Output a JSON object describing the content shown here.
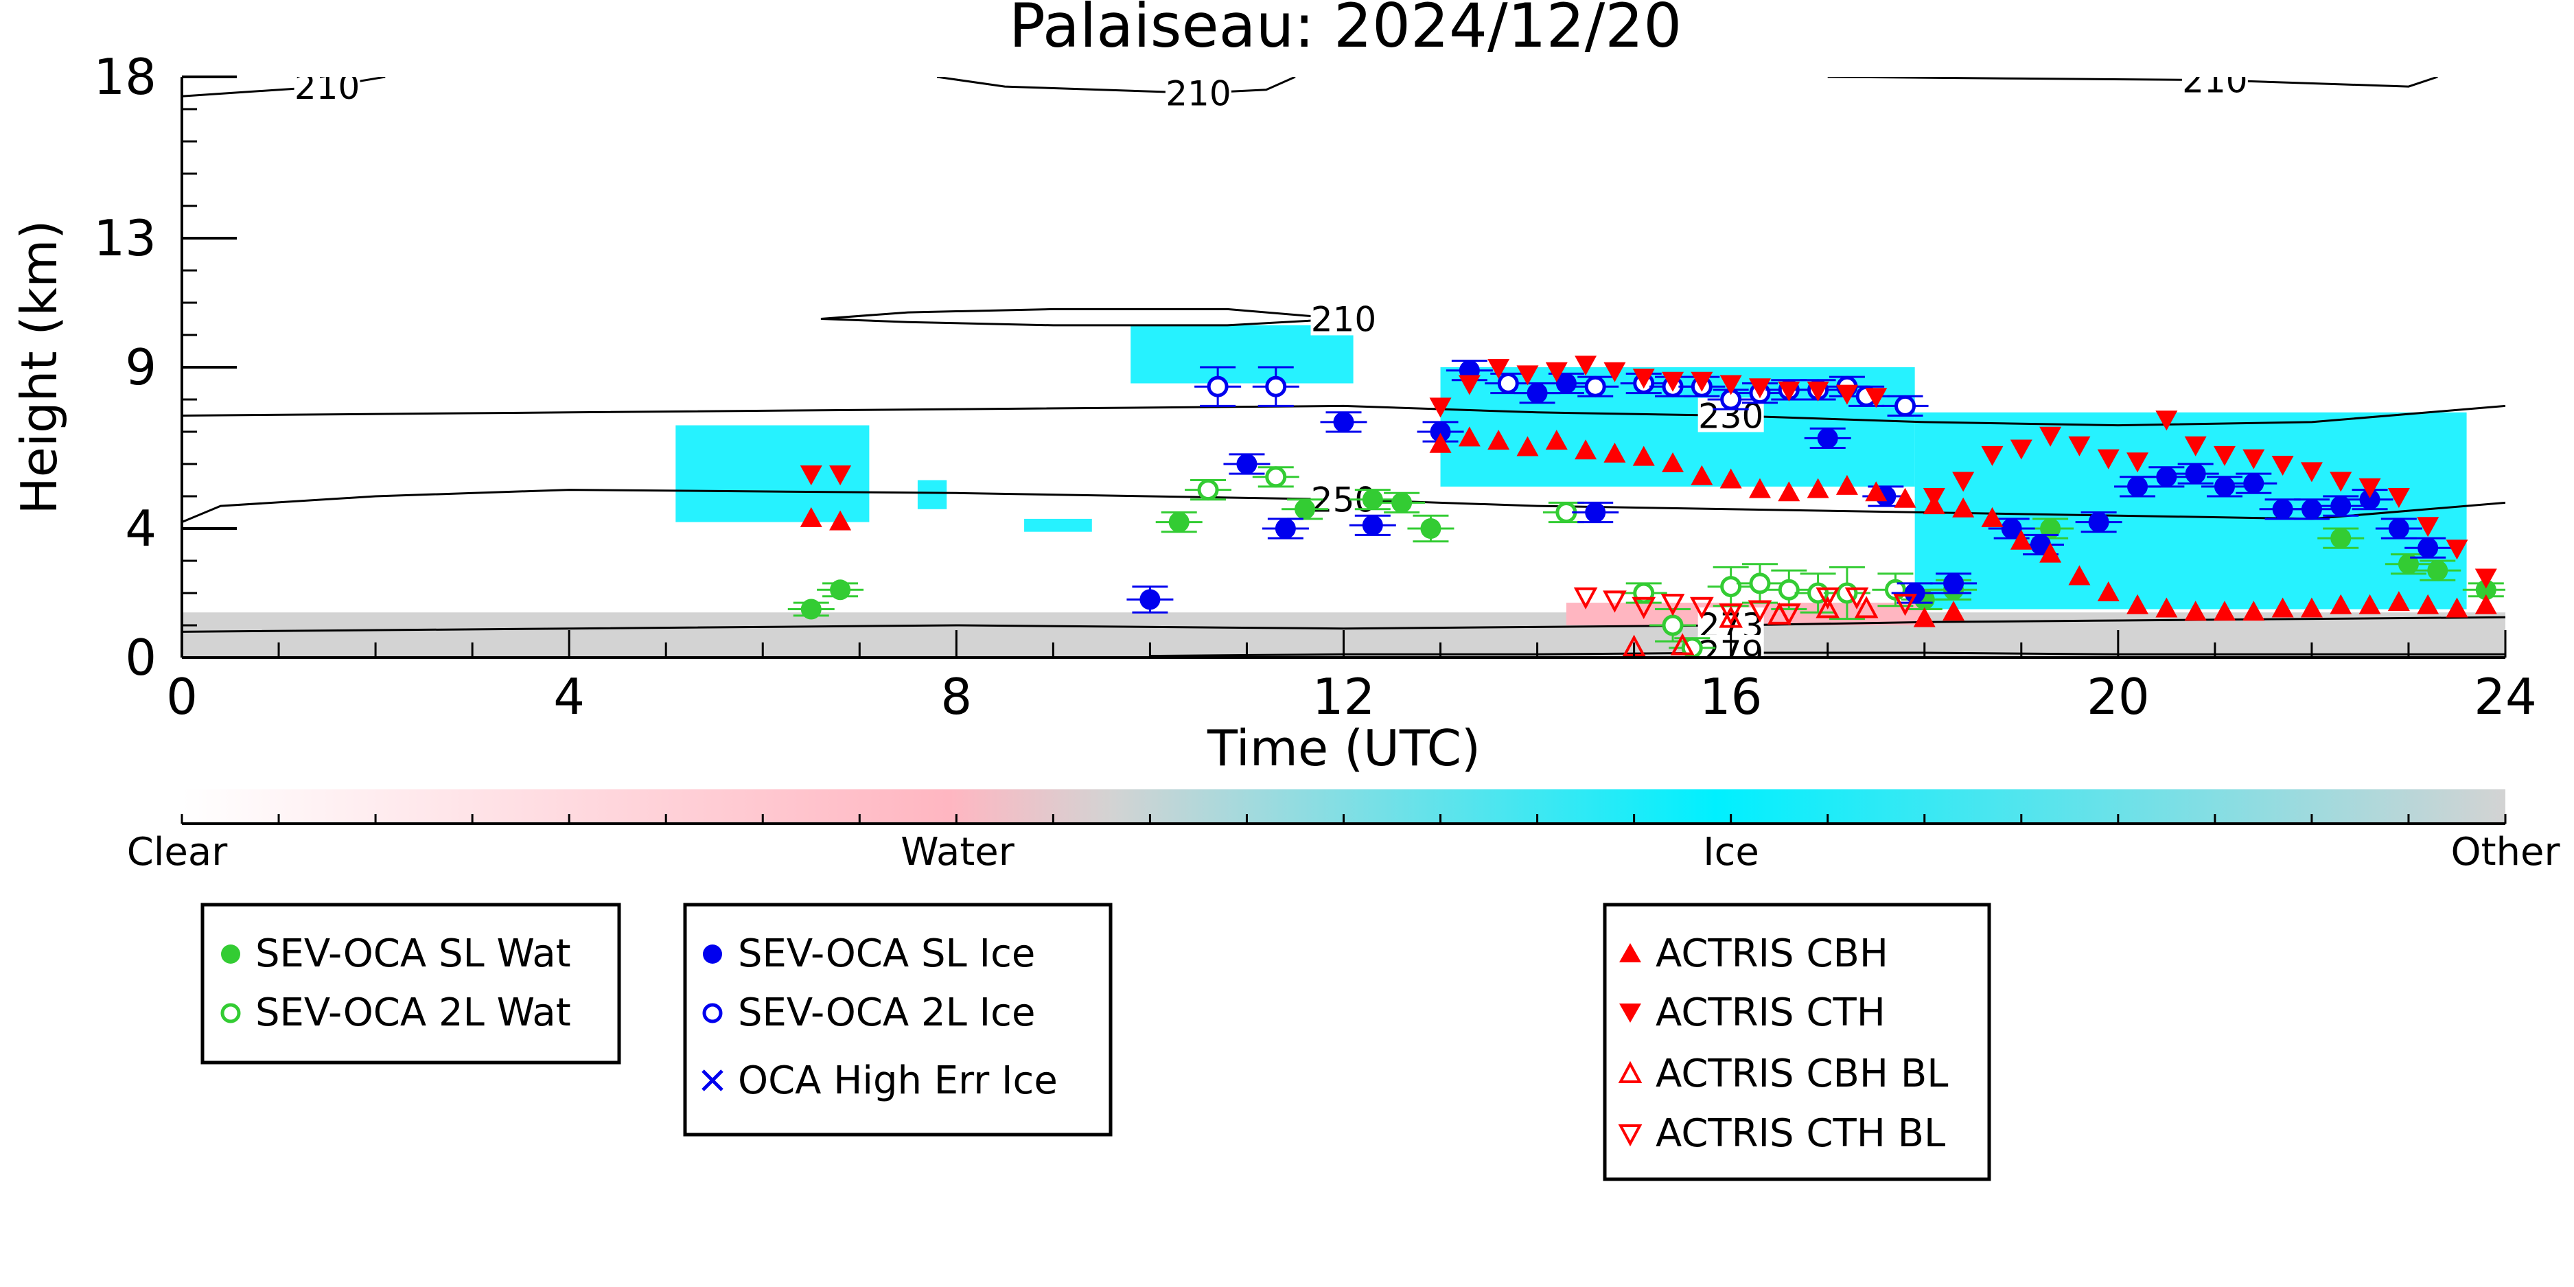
{
  "chart_data": {
    "type": "scatter",
    "title": "Palaiseau: 2024/12/20",
    "xlabel": "Time (UTC)",
    "ylabel": "Height (km)",
    "xlim": [
      0,
      24
    ],
    "ylim": [
      0,
      18
    ],
    "x_ticks": [
      "0",
      "4",
      "8",
      "12",
      "16",
      "20",
      "24"
    ],
    "y_ticks": [
      "0",
      "4",
      "9",
      "13",
      "18"
    ],
    "grid": false,
    "colorbar": {
      "labels": [
        "Clear",
        "Water",
        "Ice",
        "Other"
      ],
      "colors": [
        "#ffffff",
        "#ffb6c1",
        "#00f0ff",
        "#d3d3d3"
      ]
    },
    "contours": [
      {
        "label": "210",
        "points": [
          [
            0,
            17.4
          ],
          [
            0.5,
            17.5
          ],
          [
            1.5,
            17.7
          ],
          [
            2.1,
            18
          ]
        ]
      },
      {
        "label": "210",
        "points": [
          [
            7.8,
            18
          ],
          [
            8.5,
            17.7
          ],
          [
            10.5,
            17.5
          ],
          [
            11.2,
            17.6
          ],
          [
            11.5,
            18
          ]
        ]
      },
      {
        "label": "210",
        "points": [
          [
            17,
            18
          ],
          [
            19,
            17.95
          ],
          [
            21,
            17.9
          ],
          [
            23,
            17.7
          ],
          [
            23.3,
            18
          ]
        ]
      },
      {
        "label": "210",
        "points": [
          [
            6.6,
            10.5
          ],
          [
            7.5,
            10.7
          ],
          [
            9,
            10.8
          ],
          [
            10.8,
            10.8
          ],
          [
            12,
            10.5
          ],
          [
            10.8,
            10.3
          ],
          [
            9,
            10.3
          ],
          [
            7.5,
            10.4
          ],
          [
            6.6,
            10.5
          ]
        ]
      },
      {
        "label": "230",
        "points": [
          [
            0,
            7.5
          ],
          [
            4,
            7.6
          ],
          [
            8,
            7.7
          ],
          [
            12,
            7.8
          ],
          [
            14,
            7.6
          ],
          [
            16,
            7.5
          ],
          [
            18,
            7.3
          ],
          [
            20,
            7.2
          ],
          [
            22,
            7.3
          ],
          [
            24,
            7.8
          ]
        ]
      },
      {
        "label": "250",
        "points": [
          [
            0,
            4.2
          ],
          [
            0.4,
            4.7
          ],
          [
            2,
            5
          ],
          [
            4,
            5.2
          ],
          [
            8,
            5.1
          ],
          [
            12,
            4.9
          ],
          [
            14,
            4.7
          ],
          [
            18,
            4.5
          ],
          [
            20,
            4.4
          ],
          [
            22,
            4.3
          ],
          [
            24,
            4.8
          ]
        ]
      },
      {
        "label": "273",
        "points": [
          [
            0,
            0.8
          ],
          [
            4,
            0.9
          ],
          [
            8,
            1.0
          ],
          [
            12,
            0.9
          ],
          [
            14,
            0.95
          ],
          [
            16,
            1.0
          ],
          [
            18,
            1.1
          ],
          [
            20,
            1.15
          ],
          [
            22,
            1.2
          ],
          [
            24,
            1.25
          ]
        ]
      },
      {
        "label": "279",
        "points": [
          [
            10,
            0.05
          ],
          [
            12,
            0.1
          ],
          [
            14,
            0.1
          ],
          [
            16,
            0.15
          ],
          [
            18,
            0.15
          ],
          [
            20,
            0.1
          ],
          [
            24,
            0.1
          ]
        ]
      }
    ],
    "series": [
      {
        "name": "SEV-OCA SL Wat",
        "marker": "circle-filled",
        "color": "#33cc33",
        "points": [
          [
            6.5,
            1.5,
            0.2
          ],
          [
            6.8,
            2.1,
            0.2
          ],
          [
            10.3,
            4.2,
            0.3
          ],
          [
            11.6,
            4.6,
            0.3
          ],
          [
            12.3,
            4.9,
            0.3
          ],
          [
            12.6,
            4.8,
            0.3
          ],
          [
            12.9,
            4.0,
            0.4
          ],
          [
            18.0,
            1.8,
            0.3
          ],
          [
            18.3,
            2.1,
            0.3
          ],
          [
            19.3,
            4.0,
            0.3
          ],
          [
            22.3,
            3.7,
            0.3
          ],
          [
            23.0,
            2.9,
            0.3
          ],
          [
            23.3,
            2.7,
            0.3
          ],
          [
            23.8,
            2.1,
            0.2
          ]
        ]
      },
      {
        "name": "SEV-OCA 2L Wat",
        "marker": "circle-open",
        "color": "#33cc33",
        "points": [
          [
            10.6,
            5.2,
            0.3
          ],
          [
            11.3,
            5.6,
            0.3
          ],
          [
            14.3,
            4.5,
            0.3
          ],
          [
            15.1,
            2.0,
            0.3
          ],
          [
            15.4,
            1.0,
            0.5
          ],
          [
            15.6,
            0.3,
            0.3
          ],
          [
            16.0,
            2.2,
            0.6
          ],
          [
            16.3,
            2.3,
            0.6
          ],
          [
            16.6,
            2.1,
            0.6
          ],
          [
            16.9,
            2.0,
            0.6
          ],
          [
            17.2,
            2.0,
            0.8
          ],
          [
            17.7,
            2.1,
            0.5
          ]
        ]
      },
      {
        "name": "SEV-OCA SL Ice",
        "marker": "circle-filled",
        "color": "#0000ee",
        "points": [
          [
            10.0,
            1.8,
            0.4
          ],
          [
            11.0,
            6.0,
            0.3
          ],
          [
            11.4,
            4.0,
            0.3
          ],
          [
            12.0,
            7.3,
            0.3
          ],
          [
            12.3,
            4.1,
            0.3
          ],
          [
            13.0,
            7.0,
            0.3
          ],
          [
            13.3,
            8.9,
            0.3
          ],
          [
            14.0,
            8.2,
            0.3
          ],
          [
            14.3,
            8.5,
            0.3
          ],
          [
            14.6,
            4.5,
            0.3
          ],
          [
            17.0,
            6.8,
            0.3
          ],
          [
            17.6,
            5.0,
            0.3
          ],
          [
            17.9,
            2.0,
            0.3
          ],
          [
            18.3,
            2.3,
            0.3
          ],
          [
            18.9,
            4.0,
            0.3
          ],
          [
            19.2,
            3.5,
            0.3
          ],
          [
            19.8,
            4.2,
            0.3
          ],
          [
            20.2,
            5.3,
            0.3
          ],
          [
            20.5,
            5.6,
            0.3
          ],
          [
            20.8,
            5.7,
            0.3
          ],
          [
            21.1,
            5.3,
            0.3
          ],
          [
            21.4,
            5.4,
            0.3
          ],
          [
            21.7,
            4.6,
            0.3
          ],
          [
            22.0,
            4.6,
            0.3
          ],
          [
            22.3,
            4.7,
            0.3
          ],
          [
            22.6,
            4.9,
            0.3
          ],
          [
            22.9,
            4.0,
            0.3
          ],
          [
            23.2,
            3.4,
            0.3
          ]
        ]
      },
      {
        "name": "SEV-OCA 2L Ice",
        "marker": "circle-open",
        "color": "#0000ee",
        "points": [
          [
            10.7,
            8.4,
            0.6
          ],
          [
            11.3,
            8.4,
            0.6
          ],
          [
            13.7,
            8.5,
            0.3
          ],
          [
            14.6,
            8.4,
            0.3
          ],
          [
            15.1,
            8.5,
            0.3
          ],
          [
            15.4,
            8.4,
            0.3
          ],
          [
            15.7,
            8.4,
            0.3
          ],
          [
            16.0,
            8.0,
            0.3
          ],
          [
            16.3,
            8.2,
            0.3
          ],
          [
            16.6,
            8.3,
            0.3
          ],
          [
            16.9,
            8.3,
            0.3
          ],
          [
            17.2,
            8.4,
            0.3
          ],
          [
            17.4,
            8.1,
            0.3
          ],
          [
            17.8,
            7.8,
            0.3
          ]
        ]
      },
      {
        "name": "OCA High Err Ice",
        "marker": "x",
        "color": "#0000ee",
        "points": []
      },
      {
        "name": "ACTRIS CBH",
        "marker": "triangle-up-filled",
        "color": "#ff0000",
        "points": [
          [
            6.5,
            4.3
          ],
          [
            6.8,
            4.2
          ],
          [
            13.0,
            6.6
          ],
          [
            13.3,
            6.8
          ],
          [
            13.6,
            6.7
          ],
          [
            13.9,
            6.5
          ],
          [
            14.2,
            6.7
          ],
          [
            14.5,
            6.4
          ],
          [
            14.8,
            6.3
          ],
          [
            15.1,
            6.2
          ],
          [
            15.4,
            6.0
          ],
          [
            15.7,
            5.6
          ],
          [
            16.0,
            5.5
          ],
          [
            16.3,
            5.2
          ],
          [
            16.6,
            5.1
          ],
          [
            16.9,
            5.2
          ],
          [
            17.2,
            5.3
          ],
          [
            17.5,
            5.1
          ],
          [
            17.8,
            4.9
          ],
          [
            18.1,
            4.7
          ],
          [
            18.4,
            4.6
          ],
          [
            18.7,
            4.3
          ],
          [
            19.0,
            3.6
          ],
          [
            19.3,
            3.2
          ],
          [
            19.6,
            2.5
          ],
          [
            19.9,
            2.0
          ],
          [
            20.2,
            1.6
          ],
          [
            20.5,
            1.5
          ],
          [
            20.8,
            1.4
          ],
          [
            21.1,
            1.4
          ],
          [
            21.4,
            1.4
          ],
          [
            21.7,
            1.5
          ],
          [
            22.0,
            1.5
          ],
          [
            22.3,
            1.6
          ],
          [
            22.6,
            1.6
          ],
          [
            22.9,
            1.7
          ],
          [
            23.2,
            1.6
          ],
          [
            23.5,
            1.5
          ],
          [
            23.8,
            1.6
          ],
          [
            18.0,
            1.2
          ],
          [
            18.3,
            1.4
          ]
        ]
      },
      {
        "name": "ACTRIS CTH",
        "marker": "triangle-down-filled",
        "color": "#ff0000",
        "points": [
          [
            6.5,
            5.7
          ],
          [
            6.8,
            5.7
          ],
          [
            13.0,
            7.8
          ],
          [
            13.3,
            8.5
          ],
          [
            13.6,
            9.0
          ],
          [
            13.9,
            8.8
          ],
          [
            14.2,
            8.9
          ],
          [
            14.5,
            9.1
          ],
          [
            14.8,
            8.9
          ],
          [
            15.1,
            8.7
          ],
          [
            15.4,
            8.6
          ],
          [
            15.7,
            8.6
          ],
          [
            16.0,
            8.5
          ],
          [
            16.3,
            8.4
          ],
          [
            16.6,
            8.3
          ],
          [
            16.9,
            8.3
          ],
          [
            17.2,
            8.2
          ],
          [
            17.5,
            8.1
          ],
          [
            18.1,
            5.0
          ],
          [
            18.4,
            5.5
          ],
          [
            18.7,
            6.3
          ],
          [
            19.0,
            6.5
          ],
          [
            19.3,
            6.9
          ],
          [
            19.6,
            6.6
          ],
          [
            19.9,
            6.2
          ],
          [
            20.2,
            6.1
          ],
          [
            20.5,
            7.4
          ],
          [
            20.8,
            6.6
          ],
          [
            21.1,
            6.3
          ],
          [
            21.4,
            6.2
          ],
          [
            21.7,
            6.0
          ],
          [
            22.0,
            5.8
          ],
          [
            22.3,
            5.5
          ],
          [
            22.6,
            5.3
          ],
          [
            22.9,
            5.0
          ],
          [
            23.2,
            4.1
          ],
          [
            23.5,
            3.4
          ],
          [
            23.8,
            2.5
          ]
        ]
      },
      {
        "name": "ACTRIS CBH BL",
        "marker": "triangle-up-open",
        "color": "#ff0000",
        "points": [
          [
            15.0,
            0.3
          ],
          [
            15.5,
            0.35
          ],
          [
            16.0,
            1.2
          ],
          [
            16.5,
            1.3
          ],
          [
            17.0,
            1.5
          ],
          [
            17.4,
            1.5
          ]
        ]
      },
      {
        "name": "ACTRIS CTH BL",
        "marker": "triangle-down-open",
        "color": "#ff0000",
        "points": [
          [
            14.5,
            1.9
          ],
          [
            14.8,
            1.8
          ],
          [
            15.1,
            1.6
          ],
          [
            15.4,
            1.7
          ],
          [
            15.7,
            1.6
          ],
          [
            16.0,
            1.4
          ],
          [
            16.3,
            1.5
          ],
          [
            16.6,
            1.4
          ],
          [
            17.0,
            1.9
          ],
          [
            17.3,
            1.9
          ],
          [
            17.8,
            1.7
          ]
        ]
      }
    ],
    "cloud_regions": [
      {
        "class": "Ice",
        "x_range": [
          5.1,
          7.1
        ],
        "y_range": [
          4.2,
          7.2
        ]
      },
      {
        "class": "Ice",
        "x_range": [
          7.6,
          7.9
        ],
        "y_range": [
          4.6,
          5.5
        ]
      },
      {
        "class": "Ice",
        "x_range": [
          8.7,
          9.4
        ],
        "y_range": [
          3.9,
          4.3
        ]
      },
      {
        "class": "Ice",
        "x_range": [
          9.8,
          12.1
        ],
        "y_range": [
          8.5,
          10.3
        ]
      },
      {
        "class": "Ice",
        "x_range": [
          13.0,
          17.9
        ],
        "y_range": [
          5.3,
          9.0
        ]
      },
      {
        "class": "Ice",
        "x_range": [
          17.9,
          23.6
        ],
        "y_range": [
          1.5,
          7.6
        ]
      },
      {
        "class": "Other",
        "x_range": [
          0,
          24
        ],
        "y_range": [
          0,
          1.4
        ]
      },
      {
        "class": "Water",
        "x_range": [
          14.3,
          18.0
        ],
        "y_range": [
          1.0,
          1.7
        ]
      }
    ]
  },
  "legend": {
    "group1": [
      "SEV-OCA SL Wat",
      "SEV-OCA 2L Wat"
    ],
    "group2": [
      "SEV-OCA SL Ice",
      "SEV-OCA 2L Ice",
      "OCA High Err Ice"
    ],
    "group3": [
      "ACTRIS CBH",
      "ACTRIS CTH",
      "ACTRIS CBH BL",
      "ACTRIS CTH BL"
    ]
  }
}
